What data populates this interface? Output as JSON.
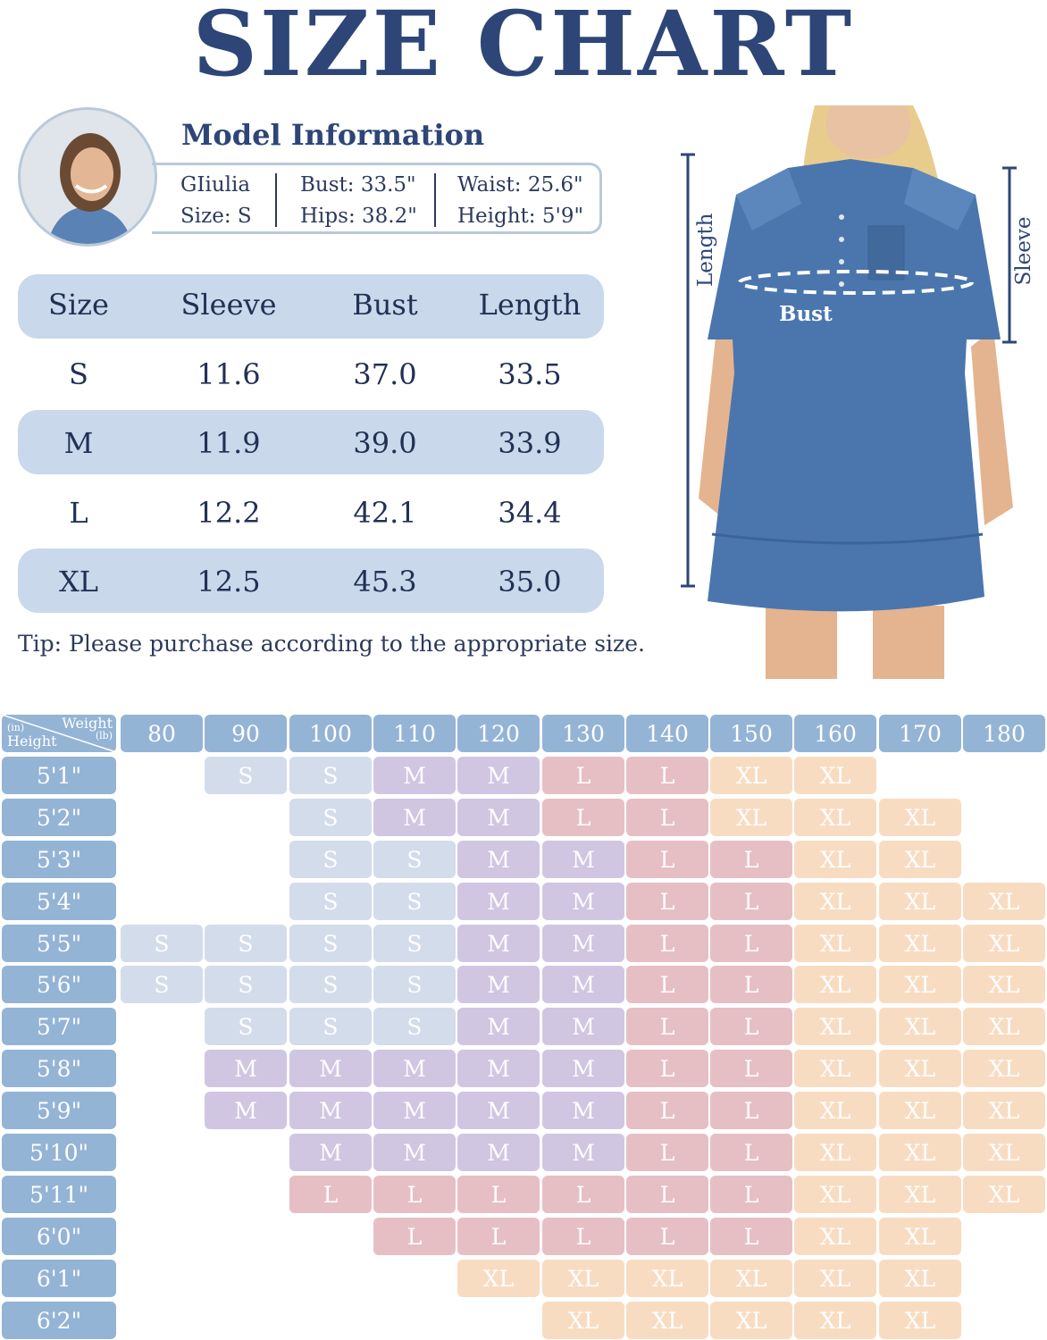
{
  "title": "SIZE CHART",
  "model": {
    "heading": "Model Information",
    "name": "GIiulia",
    "size": "Size: S",
    "bust": "Bust: 33.5\"",
    "hips": "Hips: 38.2\"",
    "waist": "Waist: 25.6\"",
    "height": "Height: 5'9\""
  },
  "size_table": {
    "headers": [
      "Size",
      "Sleeve",
      "Bust",
      "Length"
    ],
    "rows": [
      [
        "S",
        "11.6",
        "37.0",
        "33.5"
      ],
      [
        "M",
        "11.9",
        "39.0",
        "33.9"
      ],
      [
        "L",
        "12.2",
        "42.1",
        "34.4"
      ],
      [
        "XL",
        "12.5",
        "45.3",
        "35.0"
      ]
    ]
  },
  "tip": "Tip: Please purchase according to the appropriate size.",
  "diagram": {
    "length": "Length",
    "sleeve": "Sleeve",
    "bust": "Bust"
  },
  "grid": {
    "corner": {
      "weight": "Weight",
      "lb": "(lb)",
      "in": "(in)",
      "height": "Height"
    },
    "weights": [
      "80",
      "90",
      "100",
      "110",
      "120",
      "130",
      "140",
      "150",
      "160",
      "170",
      "180"
    ],
    "heights": [
      "5'1\"",
      "5'2\"",
      "5'3\"",
      "5'4\"",
      "5'5\"",
      "5'6\"",
      "5'7\"",
      "5'8\"",
      "5'9\"",
      "5'10\"",
      "5'11\"",
      "6'0\"",
      "6'1\"",
      "6'2\""
    ],
    "cells": [
      [
        "",
        "S",
        "S",
        "M",
        "M",
        "L",
        "L",
        "XL",
        "XL",
        "",
        ""
      ],
      [
        "",
        "",
        "S",
        "M",
        "M",
        "L",
        "L",
        "XL",
        "XL",
        "XL",
        ""
      ],
      [
        "",
        "",
        "S",
        "S",
        "M",
        "M",
        "L",
        "L",
        "XL",
        "XL",
        ""
      ],
      [
        "",
        "",
        "S",
        "S",
        "M",
        "M",
        "L",
        "L",
        "XL",
        "XL",
        "XL"
      ],
      [
        "S",
        "S",
        "S",
        "S",
        "M",
        "M",
        "L",
        "L",
        "XL",
        "XL",
        "XL"
      ],
      [
        "S",
        "S",
        "S",
        "S",
        "M",
        "M",
        "L",
        "L",
        "XL",
        "XL",
        "XL"
      ],
      [
        "",
        "S",
        "S",
        "S",
        "M",
        "M",
        "L",
        "L",
        "XL",
        "XL",
        "XL"
      ],
      [
        "",
        "M",
        "M",
        "M",
        "M",
        "M",
        "L",
        "L",
        "XL",
        "XL",
        "XL"
      ],
      [
        "",
        "M",
        "M",
        "M",
        "M",
        "M",
        "L",
        "L",
        "XL",
        "XL",
        "XL"
      ],
      [
        "",
        "",
        "M",
        "M",
        "M",
        "M",
        "L",
        "L",
        "XL",
        "XL",
        "XL"
      ],
      [
        "",
        "",
        "L",
        "L",
        "L",
        "L",
        "L",
        "L",
        "XL",
        "XL",
        "XL"
      ],
      [
        "",
        "",
        "",
        "L",
        "L",
        "L",
        "L",
        "L",
        "XL",
        "XL",
        ""
      ],
      [
        "",
        "",
        "",
        "",
        "XL",
        "XL",
        "XL",
        "XL",
        "XL",
        "XL",
        ""
      ],
      [
        "",
        "",
        "",
        "",
        "",
        "XL",
        "XL",
        "XL",
        "XL",
        "XL",
        ""
      ]
    ]
  },
  "colors": {
    "title": "#2d4677",
    "header_cell": "#94b4d5",
    "S": "#d3dcea",
    "M": "#d0c6e2",
    "L": "#e6bfc4",
    "XL": "#f8dcc2",
    "denim": "#4a76ad"
  }
}
